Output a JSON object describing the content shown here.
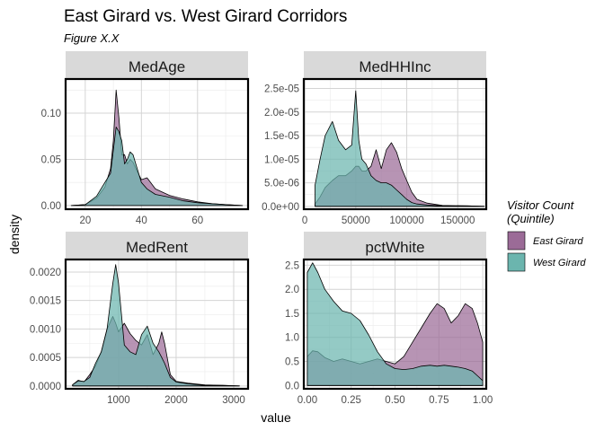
{
  "title": "East Girard vs. West Girard Corridors",
  "subtitle": "Figure X.X",
  "legend": {
    "title_line1": "Visitor Count",
    "title_line2": "(Quintile)",
    "items": [
      {
        "label": "East Girard",
        "color": "#9b6b97"
      },
      {
        "label": "West Girard",
        "color": "#6bb5ae"
      }
    ]
  },
  "chart_data": {
    "type": "area",
    "xlabel": "value",
    "ylabel": "density",
    "grid": true,
    "legend_position": "right",
    "series_names": [
      "East Girard",
      "West Girard"
    ],
    "facets": [
      {
        "name": "MedAge",
        "xlim": [
          13,
          78
        ],
        "ylim": [
          -0.004,
          0.137
        ],
        "xticks": [
          20,
          40,
          60
        ],
        "xtick_labels": [
          "20",
          "40",
          "60"
        ],
        "yticks": [
          0,
          0.05,
          0.1
        ],
        "ytick_labels": [
          "0.00",
          "0.05",
          "0.10"
        ],
        "x": [
          15,
          20,
          24,
          27,
          29,
          30,
          31,
          32,
          33,
          34,
          35,
          36,
          37,
          38,
          40,
          42,
          45,
          50,
          55,
          60,
          65,
          70,
          76
        ],
        "east": [
          0.0,
          0.001,
          0.008,
          0.02,
          0.04,
          0.07,
          0.125,
          0.095,
          0.055,
          0.055,
          0.045,
          0.05,
          0.047,
          0.04,
          0.028,
          0.03,
          0.018,
          0.011,
          0.007,
          0.004,
          0.002,
          0.001,
          0.0
        ],
        "west": [
          0.0,
          0.001,
          0.01,
          0.025,
          0.035,
          0.06,
          0.085,
          0.08,
          0.07,
          0.045,
          0.05,
          0.058,
          0.055,
          0.045,
          0.025,
          0.018,
          0.012,
          0.009,
          0.005,
          0.003,
          0.002,
          0.001,
          0.0
        ]
      },
      {
        "name": "MedHHInc",
        "xlim": [
          -1000,
          178000
        ],
        "ylim": [
          -6e-07,
          2.7e-05
        ],
        "xticks": [
          0,
          50000,
          100000,
          150000
        ],
        "xtick_labels": [
          "0",
          "50000",
          "100000",
          "150000"
        ],
        "yticks": [
          0,
          5e-06,
          1e-05,
          1.5e-05,
          2e-05,
          2.5e-05
        ],
        "ytick_labels": [
          "0.0e+00",
          "5.0e-06",
          "1.0e-05",
          "1.5e-05",
          "2.0e-05",
          "2.5e-05"
        ],
        "x": [
          10000,
          15000,
          20000,
          27000,
          33000,
          40000,
          46000,
          50000,
          53000,
          56000,
          60000,
          65000,
          70000,
          75000,
          80000,
          85000,
          90000,
          95000,
          100000,
          105000,
          110000,
          120000,
          135000,
          160000,
          176000
        ],
        "east": [
          5e-07,
          2e-06,
          4e-06,
          5.5e-06,
          6.5e-06,
          6.5e-06,
          7.5e-06,
          8.5e-06,
          8.5e-06,
          7.5e-06,
          7.5e-06,
          8.5e-06,
          1.2e-05,
          8e-06,
          1.2e-05,
          1.35e-05,
          1.15e-05,
          8e-06,
          5.5e-06,
          3e-06,
          1.5e-06,
          7e-07,
          2e-07,
          1e-07,
          0.0
        ],
        "west": [
          4.5e-06,
          1e-05,
          1.5e-05,
          1.8e-05,
          1.4e-05,
          1.2e-05,
          1.3e-05,
          2.45e-05,
          1.4e-05,
          1e-05,
          9e-06,
          6.5e-06,
          5.5e-06,
          5e-06,
          5e-06,
          4.5e-06,
          3.5e-06,
          2.5e-06,
          1.5e-06,
          8e-07,
          5e-07,
          3e-07,
          1e-07,
          1e-07,
          0.0
        ]
      },
      {
        "name": "MedRent",
        "xlim": [
          80,
          3250
        ],
        "ylim": [
          -5e-05,
          0.00222
        ],
        "xticks": [
          1000,
          2000,
          3000
        ],
        "xtick_labels": [
          "1000",
          "2000",
          "3000"
        ],
        "yticks": [
          0,
          0.0005,
          0.001,
          0.0015,
          0.002
        ],
        "ytick_labels": [
          "0.0000",
          "0.0005",
          "0.0010",
          "0.0015",
          "0.0020"
        ],
        "x": [
          200,
          300,
          400,
          500,
          600,
          700,
          800,
          900,
          950,
          1000,
          1100,
          1200,
          1300,
          1400,
          1500,
          1600,
          1700,
          1750,
          1800,
          1900,
          2000,
          2200,
          2500,
          2800,
          3100
        ],
        "east": [
          2e-05,
          0.0001,
          7e-05,
          0.0002,
          0.00035,
          0.0006,
          0.001,
          0.00122,
          0.0011,
          0.00095,
          0.0011,
          0.00092,
          0.0008,
          0.00072,
          0.0009,
          0.00055,
          0.00075,
          0.00095,
          0.00075,
          0.0002,
          8e-05,
          5e-05,
          2e-05,
          1e-05,
          0.0
        ],
        "west": [
          2e-05,
          9e-05,
          8e-05,
          0.00015,
          0.0004,
          0.0006,
          0.001,
          0.0018,
          0.00213,
          0.0018,
          0.00072,
          0.0006,
          0.00055,
          0.0009,
          0.00105,
          0.00075,
          0.0006,
          0.0005,
          0.0004,
          0.00015,
          7e-05,
          4e-05,
          1e-05,
          1e-05,
          0.0
        ]
      },
      {
        "name": "pctWhite",
        "xlim": [
          -0.02,
          1.02
        ],
        "ylim": [
          -0.07,
          2.62
        ],
        "xticks": [
          0,
          0.25,
          0.5,
          0.75,
          1
        ],
        "xtick_labels": [
          "0.00",
          "0.25",
          "0.50",
          "0.75",
          "1.00"
        ],
        "yticks": [
          0,
          0.5,
          1,
          1.5,
          2,
          2.5
        ],
        "ytick_labels": [
          "0.0",
          "0.5",
          "1.0",
          "1.5",
          "2.0",
          "2.5"
        ],
        "x": [
          0,
          0.03,
          0.06,
          0.1,
          0.15,
          0.2,
          0.25,
          0.3,
          0.35,
          0.4,
          0.45,
          0.5,
          0.55,
          0.6,
          0.65,
          0.7,
          0.74,
          0.78,
          0.82,
          0.86,
          0.9,
          0.94,
          0.97,
          1.0
        ],
        "east": [
          0.6,
          0.72,
          0.7,
          0.58,
          0.5,
          0.55,
          0.5,
          0.45,
          0.5,
          0.55,
          0.5,
          0.45,
          0.6,
          0.9,
          1.2,
          1.5,
          1.7,
          1.6,
          1.3,
          1.45,
          1.7,
          1.6,
          1.3,
          0.9
        ],
        "west": [
          2.35,
          2.55,
          2.35,
          2.0,
          1.75,
          1.55,
          1.5,
          1.35,
          1.05,
          0.7,
          0.45,
          0.35,
          0.33,
          0.35,
          0.4,
          0.42,
          0.4,
          0.42,
          0.4,
          0.38,
          0.35,
          0.3,
          0.2,
          0.1
        ]
      }
    ]
  }
}
